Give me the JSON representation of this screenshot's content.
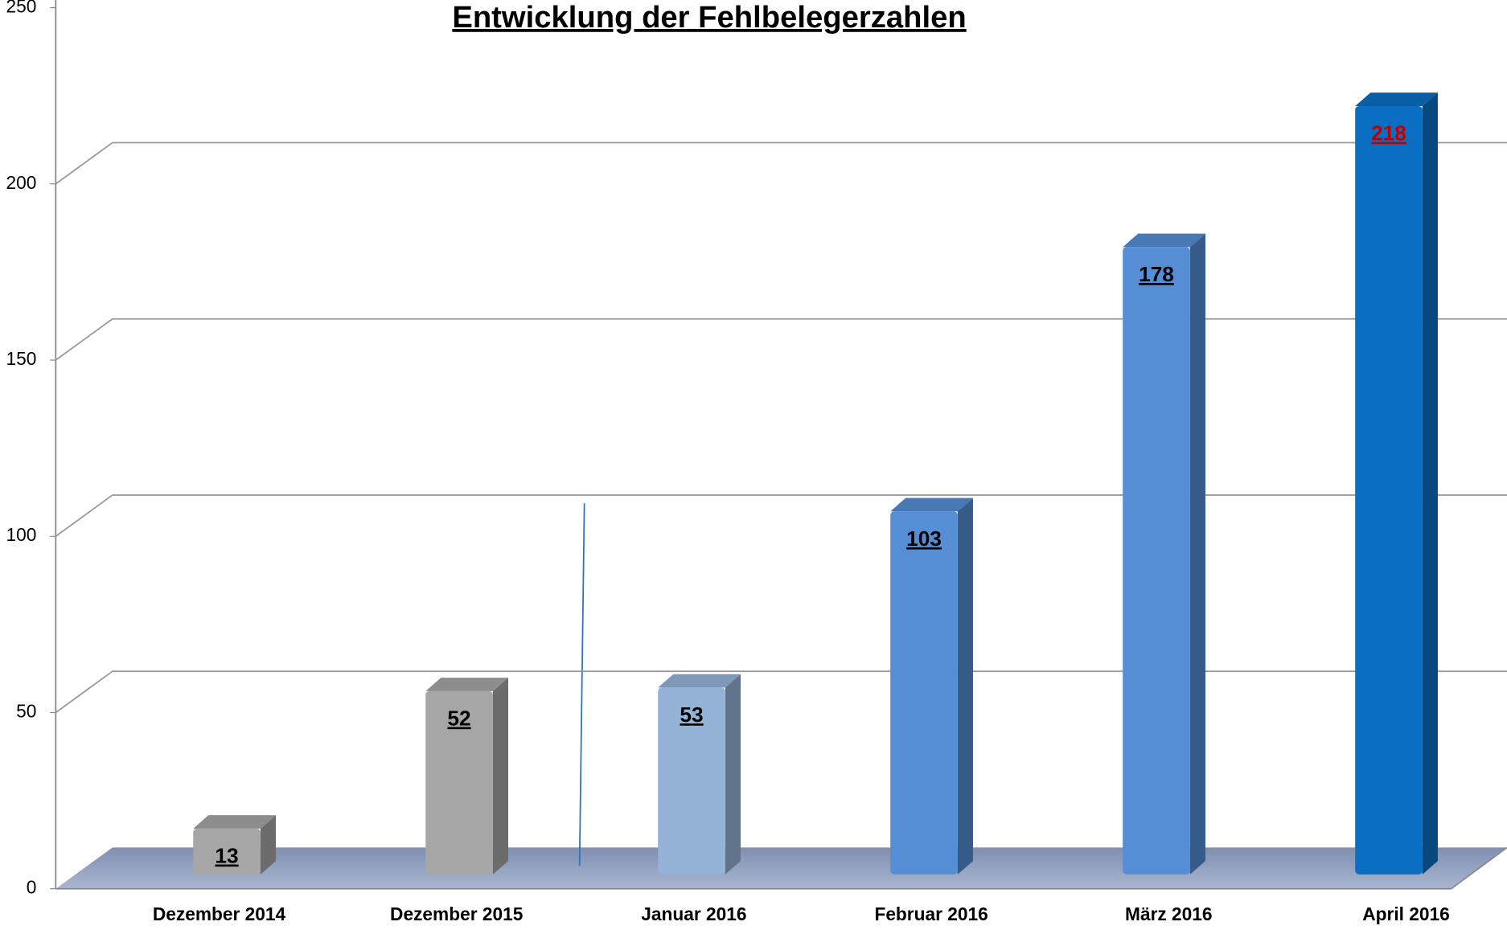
{
  "chart_data": {
    "type": "bar3d",
    "title": "Entwicklung der Fehlbelegerzahlen",
    "categories": [
      "Dezember 2014",
      "Dezember 2015",
      "Januar 2016",
      "Februar 2016",
      "März 2016",
      "April 2016"
    ],
    "values": [
      13,
      52,
      53,
      103,
      178,
      218
    ],
    "colors": [
      "#a6a6a6",
      "#a6a6a6",
      "#95b3d7",
      "#558ed5",
      "#558ed5",
      "#0a6fc2"
    ],
    "label_colors": [
      "#000000",
      "#000000",
      "#000000",
      "#000000",
      "#000000",
      "#c00000"
    ],
    "ylim": [
      0,
      250
    ],
    "yticks": [
      0,
      50,
      100,
      150,
      200,
      250
    ],
    "grid": true
  }
}
